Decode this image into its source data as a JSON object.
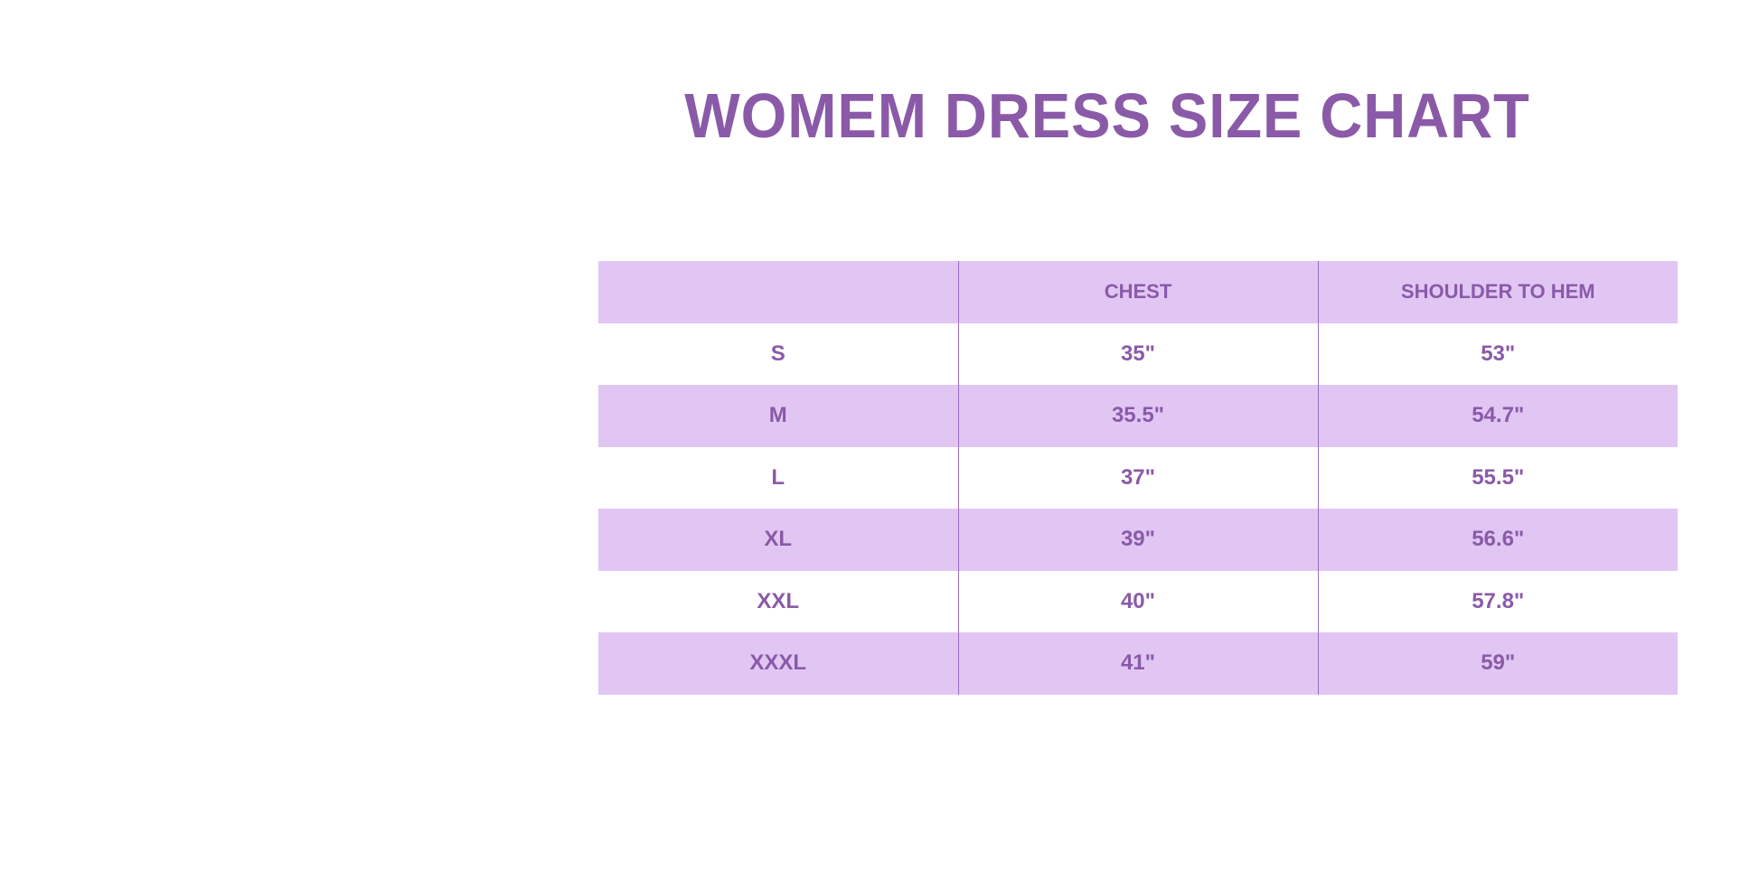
{
  "title": "WOMEM DRESS SIZE CHART",
  "colors": {
    "accent": "#8a5aa8",
    "row_fill": "#e1c6f4"
  },
  "table": {
    "headers": [
      "",
      "CHEST",
      "SHOULDER TO HEM"
    ],
    "rows": [
      [
        "S",
        "35\"",
        "53\""
      ],
      [
        "M",
        "35.5\"",
        "54.7\""
      ],
      [
        "L",
        "37\"",
        "55.5\""
      ],
      [
        "XL",
        "39\"",
        "56.6\""
      ],
      [
        "XXL",
        "40\"",
        "57.8\""
      ],
      [
        "XXXL",
        "41\"",
        "59\""
      ]
    ]
  }
}
